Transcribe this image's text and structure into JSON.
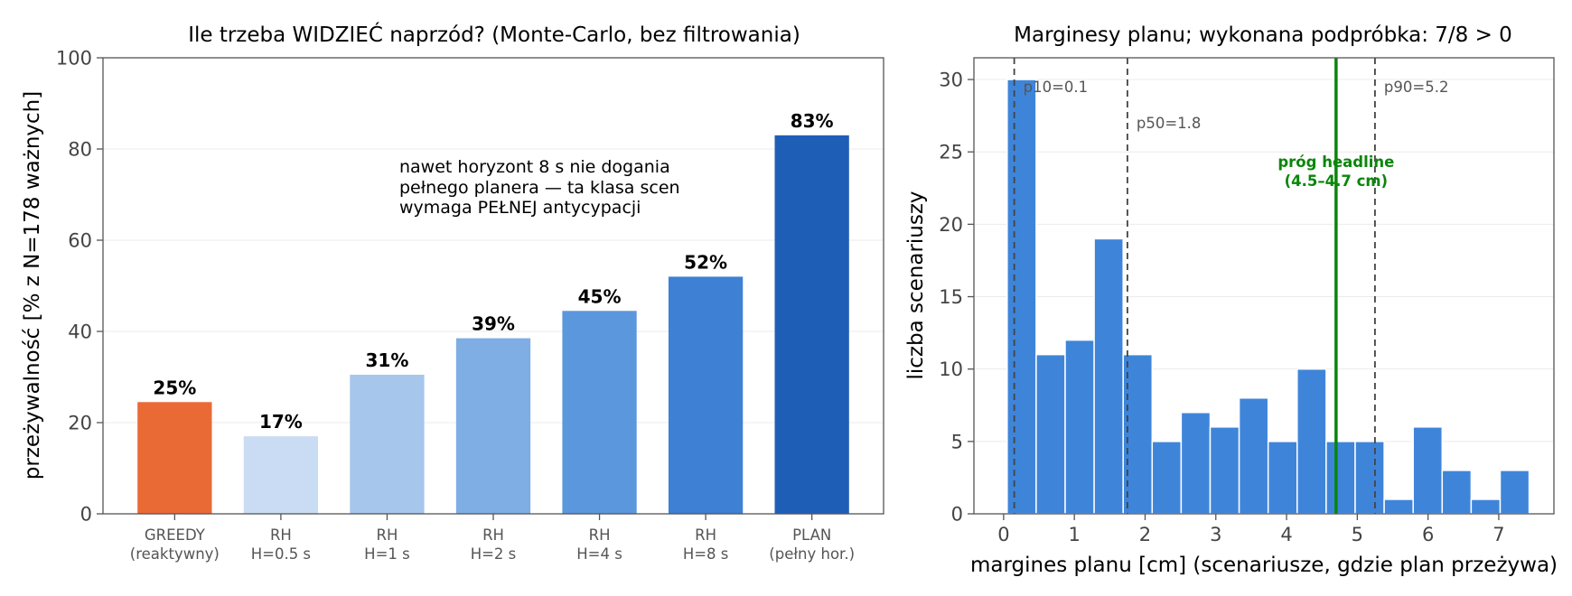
{
  "colors": {
    "greedy": "#ea6a36",
    "rh_0_5": "#cadcf3",
    "rh_1": "#a6c6ec",
    "rh_2": "#7eaee4",
    "rh_4": "#5b97dd",
    "rh_8": "#3d80d4",
    "plan": "#1f5eb7",
    "hist": "#3e85da",
    "threshold": "#0a860a",
    "dashed": "#444444",
    "grid": "#ebebeb",
    "axis": "#555555"
  },
  "chart_data": [
    {
      "type": "bar",
      "title": "Ile trzeba WIDZIEĆ naprzód? (Monte-Carlo, bez filtrowania)",
      "ylabel": "przeżywalność [% z N=178 ważnych]",
      "xlabel": "",
      "ylim": [
        0,
        100
      ],
      "yticks": [
        0,
        20,
        40,
        60,
        80,
        100
      ],
      "grid": true,
      "categories": [
        {
          "line1": "GREEDY",
          "line2": "(reaktywny)"
        },
        {
          "line1": "RH",
          "line2": "H=0.5 s"
        },
        {
          "line1": "RH",
          "line2": "H=1 s"
        },
        {
          "line1": "RH",
          "line2": "H=2 s"
        },
        {
          "line1": "RH",
          "line2": "H=4 s"
        },
        {
          "line1": "RH",
          "line2": "H=8 s"
        },
        {
          "line1": "PLAN",
          "line2": "(pełny hor.)"
        }
      ],
      "values": [
        24.5,
        17,
        30.5,
        38.5,
        44.5,
        52,
        83
      ],
      "data_labels": [
        "25%",
        "17%",
        "31%",
        "39%",
        "45%",
        "52%",
        "83%"
      ],
      "bar_colors": [
        "greedy",
        "rh_0_5",
        "rh_1",
        "rh_2",
        "rh_4",
        "rh_8",
        "plan"
      ],
      "annotation": [
        "nawet horyzont 8 s nie dogania",
        "pełnego planera — ta klasa scen",
        "wymaga PEŁNEJ antycypacji"
      ]
    },
    {
      "type": "histogram",
      "title": "Marginesy planu; wykonana podpróbka: 7/8 > 0",
      "xlabel": "margines planu [cm] (scenariusze, gdzie plan przeżywa)",
      "ylabel": "liczba scenariuszy",
      "xlim": [
        -0.42,
        7.78
      ],
      "ylim": [
        0,
        31.5
      ],
      "xticks": [
        0,
        1,
        2,
        3,
        4,
        5,
        6,
        7
      ],
      "yticks": [
        0,
        5,
        10,
        15,
        20,
        25,
        30
      ],
      "grid": true,
      "bin_start": 0.05,
      "bin_width": 0.41,
      "counts": [
        30,
        11,
        12,
        19,
        11,
        5,
        7,
        6,
        8,
        5,
        10,
        5,
        5,
        1,
        6,
        3,
        1,
        3
      ],
      "percentile_lines": [
        {
          "x": 0.15,
          "label": "p10=0.1",
          "label_y": 29.5
        },
        {
          "x": 1.75,
          "label": "p50=1.8",
          "label_y": 27
        },
        {
          "x": 5.25,
          "label": "p90=5.2",
          "label_y": 29.5
        }
      ],
      "threshold": {
        "x": 4.7,
        "label_line1": "próg headline",
        "label_line2": "(4.5–4.7 cm)"
      }
    }
  ]
}
